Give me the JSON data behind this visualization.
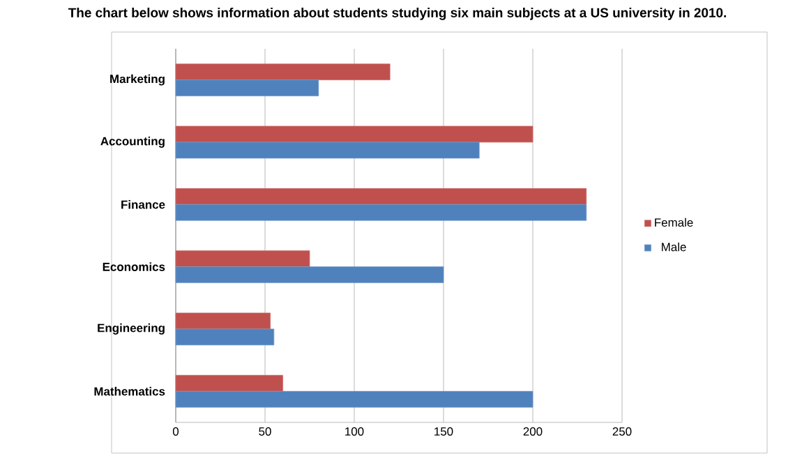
{
  "chart_data": {
    "type": "bar",
    "orientation": "horizontal",
    "title": "The chart below shows information about students studying six main subjects at a US university in 2010.",
    "categories": [
      "Marketing",
      "Accounting",
      "Finance",
      "Economics",
      "Engineering",
      "Mathematics"
    ],
    "series": [
      {
        "name": "Female",
        "color": "#c0504d",
        "values": [
          120,
          200,
          230,
          75,
          53,
          60
        ]
      },
      {
        "name": "Male",
        "color": "#4f81bd",
        "values": [
          80,
          170,
          230,
          150,
          55,
          200
        ]
      }
    ],
    "xlim": [
      0,
      250
    ],
    "xticks": [
      0,
      50,
      100,
      150,
      200,
      250
    ],
    "grid": "x",
    "legend": "right"
  }
}
